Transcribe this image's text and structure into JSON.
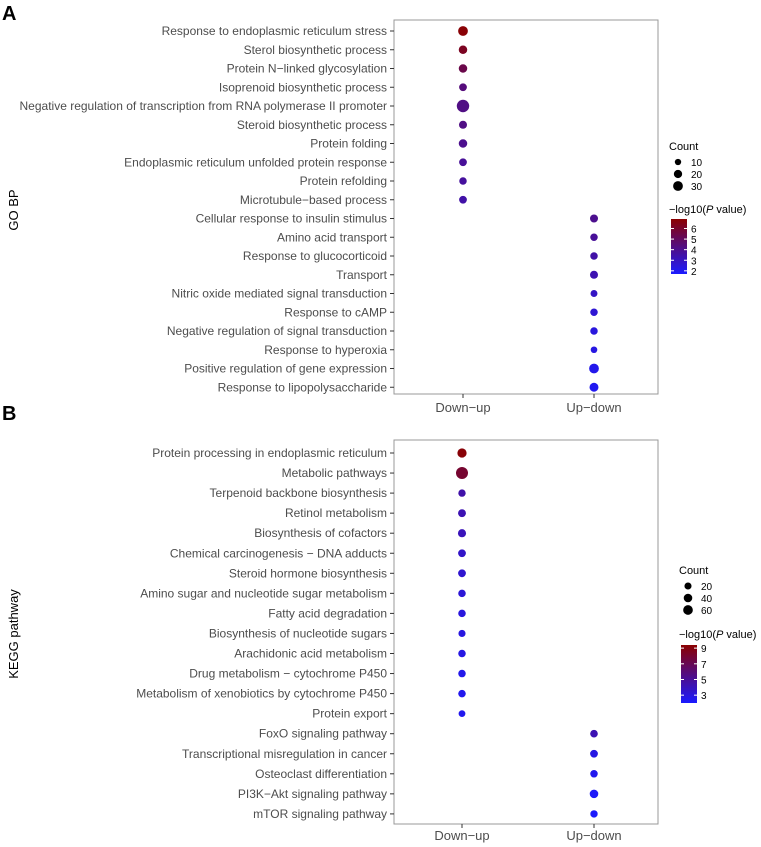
{
  "chart_data": [
    {
      "type": "scatter",
      "panel_label": "A",
      "ylabel": "GO BP",
      "categories_x": [
        "Down−up",
        "Up−down"
      ],
      "categories_y": [
        "Response to endoplasmic reticulum stress",
        "Sterol biosynthetic process",
        "Protein N−linked glycosylation",
        "Isoprenoid biosynthetic process",
        "Negative regulation of transcription from RNA polymerase II promoter",
        "Steroid biosynthetic process",
        "Protein folding",
        "Endoplasmic reticulum unfolded protein response",
        "Protein refolding",
        "Microtubule−based process",
        "Cellular response to insulin stimulus",
        "Amino acid transport",
        "Response to glucocorticoid",
        "Transport",
        "Nitric oxide mediated signal transduction",
        "Response to cAMP",
        "Negative regulation of signal transduction",
        "Response to hyperoxia",
        "Positive regulation of gene expression",
        "Response to lipopolysaccharide"
      ],
      "points": [
        {
          "x": "Down−up",
          "y": "Response to endoplasmic reticulum stress",
          "count": 20,
          "neglog10p": 6.8
        },
        {
          "x": "Down−up",
          "y": "Sterol biosynthetic process",
          "count": 14,
          "neglog10p": 6.2
        },
        {
          "x": "Down−up",
          "y": "Protein N−linked glycosylation",
          "count": 14,
          "neglog10p": 5.4
        },
        {
          "x": "Down−up",
          "y": "Isoprenoid biosynthetic process",
          "count": 11,
          "neglog10p": 4.4
        },
        {
          "x": "Down−up",
          "y": "Negative regulation of transcription from RNA polymerase II promoter",
          "count": 36,
          "neglog10p": 4.2
        },
        {
          "x": "Down−up",
          "y": "Steroid biosynthetic process",
          "count": 12,
          "neglog10p": 4.2
        },
        {
          "x": "Down−up",
          "y": "Protein folding",
          "count": 14,
          "neglog10p": 4.0
        },
        {
          "x": "Down−up",
          "y": "Endoplasmic reticulum unfolded protein response",
          "count": 11,
          "neglog10p": 3.8
        },
        {
          "x": "Down−up",
          "y": "Protein refolding",
          "count": 10,
          "neglog10p": 3.7
        },
        {
          "x": "Down−up",
          "y": "Microtubule−based process",
          "count": 11,
          "neglog10p": 3.5
        },
        {
          "x": "Up−down",
          "y": "Cellular response to insulin stimulus",
          "count": 12,
          "neglog10p": 4.0
        },
        {
          "x": "Up−down",
          "y": "Amino acid transport",
          "count": 10,
          "neglog10p": 3.8
        },
        {
          "x": "Up−down",
          "y": "Response to glucocorticoid",
          "count": 10,
          "neglog10p": 3.5
        },
        {
          "x": "Up−down",
          "y": "Transport",
          "count": 12,
          "neglog10p": 3.3
        },
        {
          "x": "Up−down",
          "y": "Nitric oxide mediated signal transduction",
          "count": 8,
          "neglog10p": 2.9
        },
        {
          "x": "Up−down",
          "y": "Response to cAMP",
          "count": 10,
          "neglog10p": 2.6
        },
        {
          "x": "Up−down",
          "y": "Negative regulation of signal transduction",
          "count": 10,
          "neglog10p": 2.4
        },
        {
          "x": "Up−down",
          "y": "Response to hyperoxia",
          "count": 7,
          "neglog10p": 2.3
        },
        {
          "x": "Up−down",
          "y": "Positive regulation of gene expression",
          "count": 20,
          "neglog10p": 2.1
        },
        {
          "x": "Up−down",
          "y": "Response to lipopolysaccharide",
          "count": 16,
          "neglog10p": 2.0
        }
      ],
      "size_legend": {
        "title": "Count",
        "breaks": [
          10,
          20,
          30
        ],
        "labels": [
          "10",
          "20",
          "30"
        ],
        "range": [
          7,
          36
        ]
      },
      "color_legend": {
        "title_prefix": "−log10(",
        "title_italic": "P",
        "title_suffix": " value)",
        "breaks": [
          2,
          3,
          4,
          5,
          6
        ],
        "labels": [
          "2",
          "3",
          "4",
          "5",
          "6"
        ],
        "range": [
          1.7,
          6.9
        ],
        "low_color": "#1a1aff",
        "high_color": "#8b0000"
      }
    },
    {
      "type": "scatter",
      "panel_label": "B",
      "ylabel": "KEGG pathway",
      "categories_x": [
        "Down−up",
        "Up−down"
      ],
      "categories_y": [
        "Protein processing in endoplasmic reticulum",
        "Metabolic pathways",
        "Terpenoid backbone biosynthesis",
        "Retinol metabolism",
        "Biosynthesis of cofactors",
        "Chemical carcinogenesis − DNA adducts",
        "Steroid hormone biosynthesis",
        "Amino sugar and nucleotide sugar metabolism",
        "Fatty acid degradation",
        "Biosynthesis of nucleotide sugars",
        "Arachidonic acid metabolism",
        "Drug metabolism − cytochrome P450",
        "Metabolism of xenobiotics by cytochrome P450",
        "Protein export",
        "FoxO signaling pathway",
        "Transcriptional misregulation in cancer",
        "Osteoclast differentiation",
        "PI3K−Akt signaling pathway",
        "mTOR signaling pathway"
      ],
      "points": [
        {
          "x": "Down−up",
          "y": "Protein processing in endoplasmic reticulum",
          "count": 30,
          "neglog10p": 9.2
        },
        {
          "x": "Down−up",
          "y": "Metabolic pathways",
          "count": 70,
          "neglog10p": 8.0
        },
        {
          "x": "Down−up",
          "y": "Terpenoid backbone biosynthesis",
          "count": 12,
          "neglog10p": 4.5
        },
        {
          "x": "Down−up",
          "y": "Retinol metabolism",
          "count": 16,
          "neglog10p": 4.2
        },
        {
          "x": "Down−up",
          "y": "Biosynthesis of cofactors",
          "count": 18,
          "neglog10p": 4.0
        },
        {
          "x": "Down−up",
          "y": "Chemical carcinogenesis − DNA adducts",
          "count": 15,
          "neglog10p": 3.6
        },
        {
          "x": "Down−up",
          "y": "Steroid hormone biosynthesis",
          "count": 15,
          "neglog10p": 3.4
        },
        {
          "x": "Down−up",
          "y": "Amino sugar and nucleotide sugar metabolism",
          "count": 13,
          "neglog10p": 3.2
        },
        {
          "x": "Down−up",
          "y": "Fatty acid degradation",
          "count": 13,
          "neglog10p": 3.0
        },
        {
          "x": "Down−up",
          "y": "Biosynthesis of nucleotide sugars",
          "count": 10,
          "neglog10p": 2.9
        },
        {
          "x": "Down−up",
          "y": "Arachidonic acid metabolism",
          "count": 13,
          "neglog10p": 2.8
        },
        {
          "x": "Down−up",
          "y": "Drug metabolism − cytochrome P450",
          "count": 13,
          "neglog10p": 2.6
        },
        {
          "x": "Down−up",
          "y": "Metabolism of xenobiotics by cytochrome P450",
          "count": 13,
          "neglog10p": 2.5
        },
        {
          "x": "Down−up",
          "y": "Protein export",
          "count": 8,
          "neglog10p": 2.5
        },
        {
          "x": "Up−down",
          "y": "FoxO signaling pathway",
          "count": 14,
          "neglog10p": 4.2
        },
        {
          "x": "Up−down",
          "y": "Transcriptional misregulation in cancer",
          "count": 15,
          "neglog10p": 2.8
        },
        {
          "x": "Up−down",
          "y": "Osteoclast differentiation",
          "count": 13,
          "neglog10p": 2.5
        },
        {
          "x": "Up−down",
          "y": "PI3K−Akt signaling pathway",
          "count": 22,
          "neglog10p": 2.2
        },
        {
          "x": "Up−down",
          "y": "mTOR signaling pathway",
          "count": 12,
          "neglog10p": 2.1
        }
      ],
      "size_legend": {
        "title": "Count",
        "breaks": [
          20,
          40,
          60
        ],
        "labels": [
          "20",
          "40",
          "60"
        ],
        "range": [
          8,
          70
        ]
      },
      "color_legend": {
        "title_prefix": "−log10(",
        "title_italic": "P",
        "title_suffix": " value)",
        "breaks": [
          3,
          5,
          7,
          9
        ],
        "labels": [
          "3",
          "5",
          "7",
          "9"
        ],
        "range": [
          2.0,
          9.4
        ],
        "low_color": "#1a1aff",
        "high_color": "#8b0000"
      }
    }
  ]
}
